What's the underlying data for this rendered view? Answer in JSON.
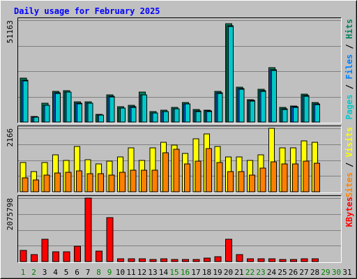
{
  "chart_data": {
    "type": "bar",
    "title": "Daily usage for February 2025",
    "categories": [
      "1",
      "2",
      "3",
      "4",
      "5",
      "6",
      "7",
      "8",
      "9",
      "10",
      "11",
      "12",
      "13",
      "14",
      "15",
      "16",
      "17",
      "18",
      "19",
      "20",
      "21",
      "22",
      "23",
      "24",
      "25",
      "26",
      "27",
      "28",
      "29",
      "30",
      "31"
    ],
    "weekend_days": [
      "1",
      "2",
      "8",
      "9",
      "15",
      "16",
      "22",
      "23",
      "29",
      "30"
    ],
    "panels": [
      {
        "id": "hits-files-pages",
        "max_label": "51163",
        "ymax": 51163,
        "right_label_parts": [
          {
            "text": "Pages",
            "color": "#00c8c8"
          },
          {
            "text": " / ",
            "color": "#000000"
          },
          {
            "text": "Files",
            "color": "#0080ff"
          },
          {
            "text": " / ",
            "color": "#000000"
          },
          {
            "text": "Hits",
            "color": "#00805c"
          }
        ],
        "series": [
          {
            "name": "Hits",
            "color": "#00805c",
            "values": [
              22000,
              2800,
              9500,
              15400,
              15800,
              10300,
              10300,
              4000,
              13600,
              7800,
              8400,
              14900,
              5300,
              5900,
              7500,
              9900,
              6200,
              6100,
              15400,
              49500,
              17600,
              11300,
              16500,
              27400,
              7200,
              8200,
              14000,
              9800,
              null,
              null,
              null
            ]
          },
          {
            "name": "Files",
            "color": "#0080ff",
            "values": [
              21000,
              2600,
              8500,
              14700,
              15200,
              9400,
              9600,
              3500,
              12800,
              7100,
              7600,
              13800,
              4700,
              5300,
              6800,
              9200,
              5600,
              5500,
              14600,
              48500,
              16700,
              10700,
              15700,
              26400,
              6600,
              7700,
              13200,
              9000,
              null,
              null,
              null
            ]
          },
          {
            "name": "Pages",
            "color": "#00c8c8",
            "values": [
              20800,
              2500,
              8300,
              14500,
              15000,
              9200,
              9400,
              3400,
              12600,
              6900,
              7400,
              13600,
              4500,
              5100,
              6600,
              9000,
              5400,
              5300,
              14400,
              48100,
              16500,
              10500,
              15500,
              26100,
              6400,
              7500,
              13000,
              8800,
              null,
              null,
              null
            ]
          }
        ]
      },
      {
        "id": "visits-sites",
        "max_label": "2166",
        "ymax": 2166,
        "right_label_parts": [
          {
            "text": "Sites",
            "color": "#ff8000"
          },
          {
            "text": " / ",
            "color": "#000000"
          },
          {
            "text": "Visits",
            "color": "#ffff00"
          }
        ],
        "series": [
          {
            "name": "Visits",
            "color": "#ffff00",
            "values": [
              1000,
              700,
              1000,
              1250,
              1080,
              1540,
              1100,
              950,
              1050,
              1180,
              1500,
              1080,
              1500,
              1680,
              1600,
              1300,
              1820,
              1980,
              1540,
              1200,
              1200,
              1080,
              1250,
              2166,
              1500,
              1500,
              1740,
              1700,
              null,
              null,
              null
            ]
          },
          {
            "name": "Sites",
            "color": "#ff8000",
            "values": [
              480,
              400,
              580,
              650,
              660,
              720,
              620,
              610,
              560,
              670,
              740,
              740,
              730,
              1330,
              1460,
              960,
              1050,
              1480,
              1000,
              700,
              690,
              580,
              820,
              1020,
              950,
              950,
              1050,
              980,
              null,
              null,
              null
            ]
          }
        ]
      },
      {
        "id": "kbytes",
        "max_label": "2075798",
        "ymax": 2075798,
        "right_label_parts": [
          {
            "text": "KBytes",
            "color": "#ff0000"
          }
        ],
        "series": [
          {
            "name": "KBytes",
            "color": "#ff0000",
            "values": [
              372000,
              236000,
              727000,
              330000,
              326000,
              494000,
              2075798,
              339000,
              1428000,
              80000,
              92000,
              89000,
              75000,
              90000,
              71000,
              71000,
              72000,
              124000,
              150000,
              720000,
              223000,
              87000,
              81000,
              98000,
              78000,
              75000,
              84000,
              86000,
              null,
              null,
              null
            ]
          }
        ]
      }
    ]
  }
}
